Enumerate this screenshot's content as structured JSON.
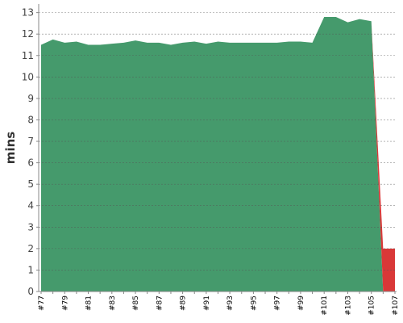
{
  "chart_data": {
    "type": "stacked_area",
    "y_label": "mins",
    "categories": [
      "#77",
      null,
      "#79",
      null,
      "#81",
      null,
      "#83",
      null,
      "#85",
      null,
      "#87",
      null,
      "#89",
      null,
      "#91",
      null,
      "#93",
      null,
      "#95",
      null,
      "#97",
      null,
      "#99",
      null,
      "#101",
      null,
      "#103",
      null,
      "#105",
      null,
      "#107"
    ],
    "series": [
      {
        "color": "#459a6c",
        "values": [
          11.5,
          11.75,
          11.6,
          11.65,
          11.5,
          11.5,
          11.55,
          11.6,
          11.7,
          11.6,
          11.6,
          11.5,
          11.6,
          11.65,
          11.55,
          11.65,
          11.6,
          11.6,
          11.6,
          11.6,
          11.6,
          11.65,
          11.65,
          11.6,
          12.8,
          12.8,
          12.55,
          12.7,
          12.6,
          0,
          0
        ]
      },
      {
        "color": "#d93838",
        "values": [
          0,
          0,
          0,
          0,
          0,
          0,
          0,
          0,
          0,
          0,
          0,
          0,
          0,
          0,
          0,
          0,
          0,
          0,
          0,
          0,
          0,
          0,
          0,
          0,
          0,
          0,
          0,
          0,
          0,
          2,
          2
        ]
      }
    ],
    "ylim": [
      0,
      13.4
    ],
    "yticks": [
      0,
      1,
      2,
      3,
      4,
      5,
      6,
      7,
      8,
      9,
      10,
      11,
      12,
      13
    ],
    "grid": true
  }
}
